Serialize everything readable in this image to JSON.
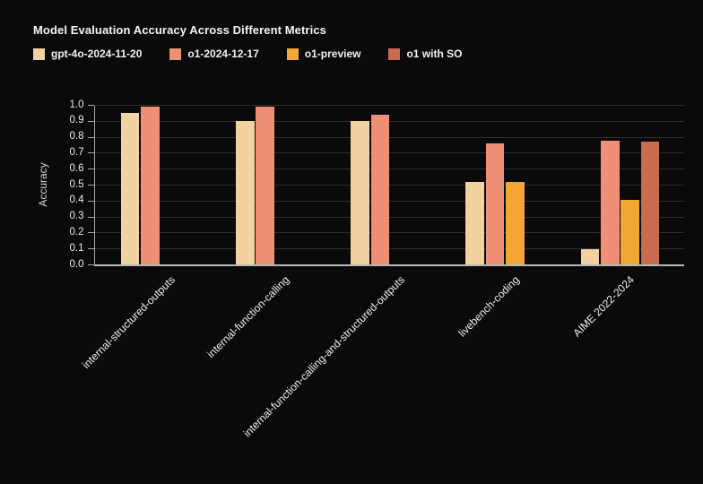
{
  "chart_data": {
    "type": "bar",
    "title": "Model Evaluation Accuracy Across Different Metrics",
    "xlabel": "",
    "ylabel": "Accuracy",
    "ylim": [
      0,
      1.0
    ],
    "ytick_step": 0.1,
    "grid": true,
    "legend_position": "top",
    "background": "#0a0a0a",
    "categories": [
      "internal-structured-outputs",
      "internal-function-calling",
      "internal-function-calling-and-structured-outputs",
      "livebench-coding",
      "AIME 2022-2024"
    ],
    "series": [
      {
        "name": "gpt-4o-2024-11-20",
        "color": "#f1d2a0",
        "values": [
          0.95,
          0.9,
          0.9,
          0.52,
          0.1
        ]
      },
      {
        "name": "o1-2024-12-17",
        "color": "#ee8f76",
        "values": [
          0.99,
          0.99,
          0.94,
          0.76,
          0.78
        ]
      },
      {
        "name": "o1-preview",
        "color": "#f3a636",
        "values": [
          null,
          null,
          null,
          0.52,
          0.41
        ]
      },
      {
        "name": "o1 with SO",
        "color": "#c96d50",
        "values": [
          null,
          null,
          null,
          null,
          0.77
        ]
      }
    ]
  }
}
